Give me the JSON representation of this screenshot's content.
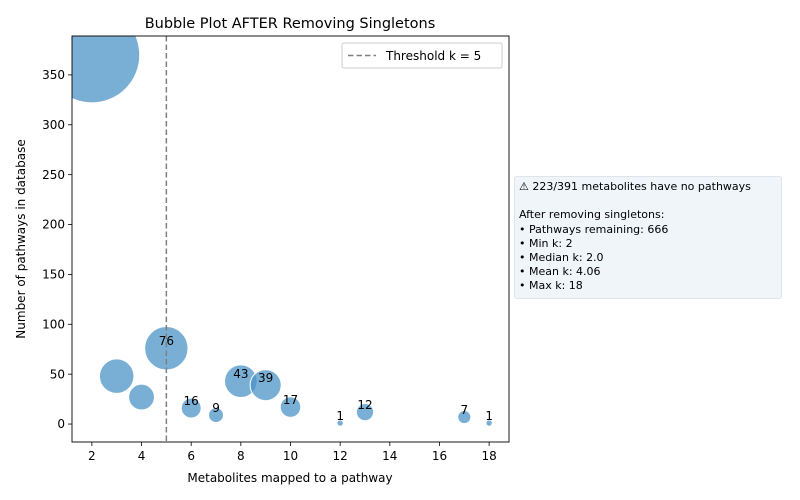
{
  "chart_data": {
    "type": "scatter",
    "title": "Bubble Plot AFTER Removing Singletons",
    "xlabel": "Metabolites mapped to a pathway",
    "ylabel": "Number of pathways in database",
    "xlim": [
      1.2,
      18.8
    ],
    "ylim": [
      -18,
      389
    ],
    "x_ticks": [
      2,
      4,
      6,
      8,
      10,
      12,
      14,
      16,
      18
    ],
    "y_ticks": [
      0,
      50,
      100,
      150,
      200,
      250,
      300,
      350
    ],
    "grid": false,
    "bubble_color": "#4b93c6",
    "points": [
      {
        "x": 2,
        "y": 370,
        "label": ""
      },
      {
        "x": 3,
        "y": 48,
        "label": ""
      },
      {
        "x": 4,
        "y": 27,
        "label": ""
      },
      {
        "x": 5,
        "y": 76,
        "label": "76"
      },
      {
        "x": 6,
        "y": 16,
        "label": "16"
      },
      {
        "x": 7,
        "y": 9,
        "label": "9"
      },
      {
        "x": 8,
        "y": 43,
        "label": "43"
      },
      {
        "x": 9,
        "y": 39,
        "label": "39"
      },
      {
        "x": 10,
        "y": 17,
        "label": "17"
      },
      {
        "x": 12,
        "y": 1,
        "label": "1"
      },
      {
        "x": 13,
        "y": 12,
        "label": "12"
      },
      {
        "x": 17,
        "y": 7,
        "label": "7"
      },
      {
        "x": 18,
        "y": 1,
        "label": "1"
      }
    ],
    "threshold": {
      "x": 5,
      "label": "Threshold k = 5",
      "color": "#7f7f7f"
    },
    "legend_position": "top-right"
  },
  "info_box": {
    "line1": "⚠ 223/391 metabolites have no pathways",
    "line2": "After removing singletons:",
    "line3": "• Pathways remaining: 666",
    "line4": "• Min k: 2",
    "line5": "• Median k: 2.0",
    "line6": "• Mean k: 4.06",
    "line7": "• Max k: 18"
  }
}
